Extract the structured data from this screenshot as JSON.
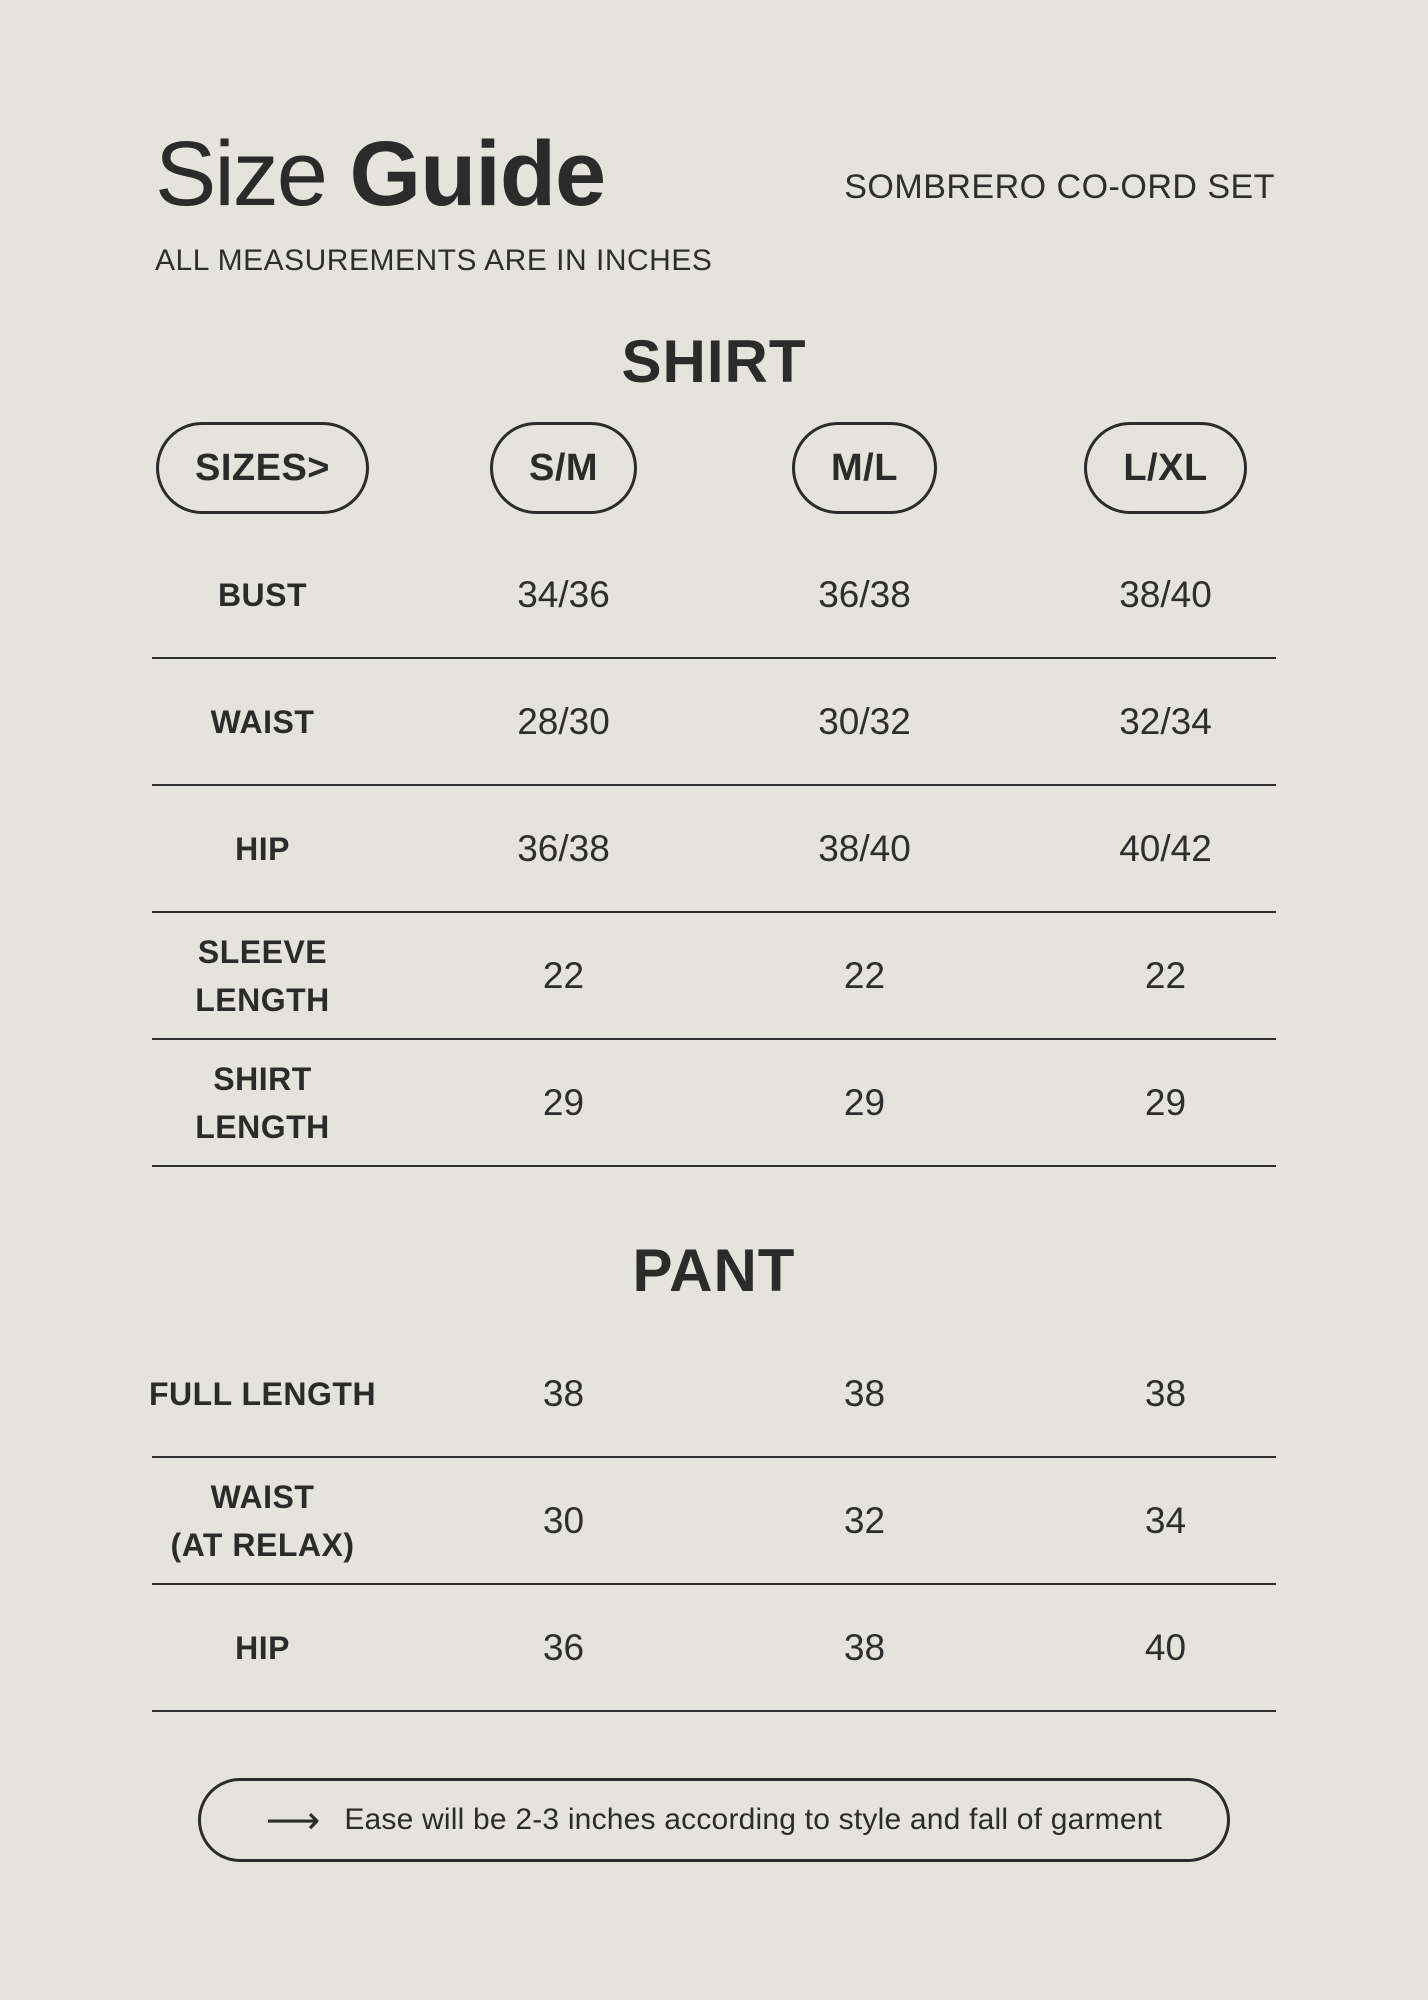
{
  "colors": {
    "background": "#e5e3dd",
    "text": "#2b2b2b",
    "rule": "#2e2e2e"
  },
  "header": {
    "title_light": "Size",
    "title_bold": "Guide",
    "subtitle": "ALL MEASUREMENTS ARE IN INCHES",
    "product": "SOMBRERO CO-ORD SET"
  },
  "sizes_header": {
    "label": "SIZES>",
    "columns": [
      "S/M",
      "M/L",
      "L/XL"
    ]
  },
  "shirt": {
    "heading": "SHIRT",
    "rows": [
      {
        "label": "BUST",
        "values": [
          "34/36",
          "36/38",
          "38/40"
        ]
      },
      {
        "label": "WAIST",
        "values": [
          "28/30",
          "30/32",
          "32/34"
        ]
      },
      {
        "label": "HIP",
        "values": [
          "36/38",
          "38/40",
          "40/42"
        ]
      },
      {
        "label": "SLEEVE\nLENGTH",
        "values": [
          "22",
          "22",
          "22"
        ]
      },
      {
        "label": "SHIRT\nLENGTH",
        "values": [
          "29",
          "29",
          "29"
        ]
      }
    ]
  },
  "pant": {
    "heading": "PANT",
    "rows": [
      {
        "label": "FULL LENGTH",
        "values": [
          "38",
          "38",
          "38"
        ]
      },
      {
        "label": "WAIST\n(AT RELAX)",
        "values": [
          "30",
          "32",
          "34"
        ]
      },
      {
        "label": "HIP",
        "values": [
          "36",
          "38",
          "40"
        ]
      }
    ]
  },
  "note": {
    "arrow": "⟶",
    "text": "Ease will be 2-3 inches according to style and fall of garment"
  }
}
